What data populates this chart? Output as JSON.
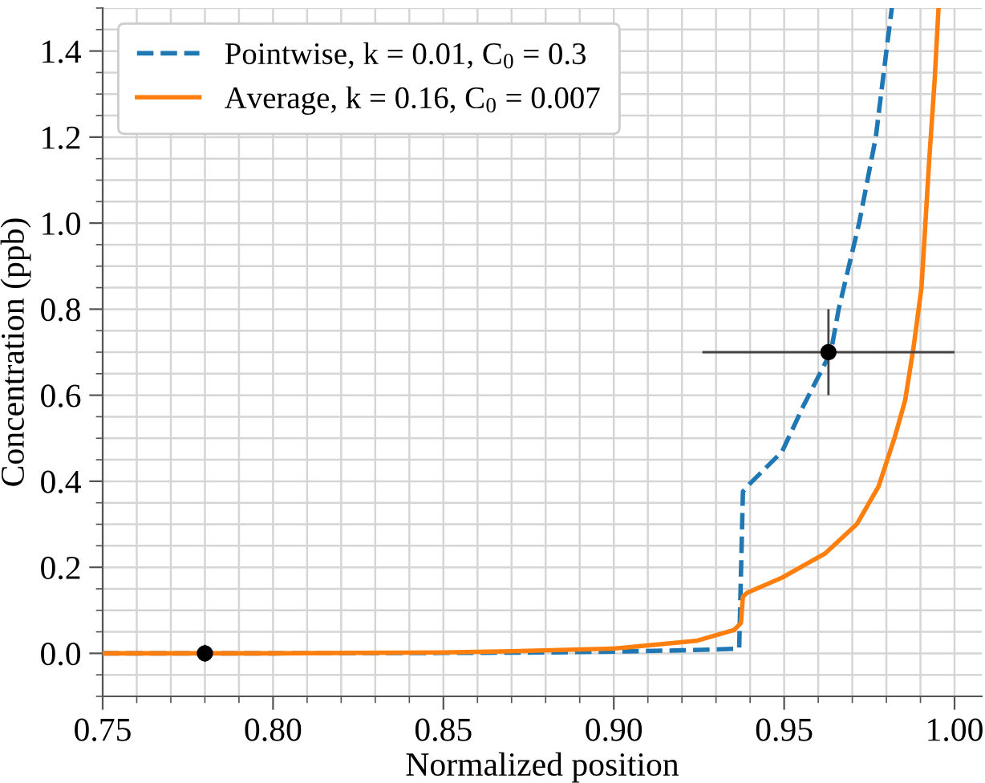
{
  "chart_data": {
    "type": "line",
    "xlabel": "Normalized position",
    "ylabel": "Concentration (ppb)",
    "xlim": [
      0.75,
      1.008
    ],
    "xticks": [
      0.75,
      {
        "value": 0.8,
        "label": "0.80"
      },
      0.85,
      {
        "value": 0.9,
        "label": "0.90"
      },
      0.95,
      {
        "value": 1.0,
        "label": "1.00"
      }
    ],
    "ylim": [
      -0.1,
      1.5
    ],
    "yticks": [
      {
        "value": 0,
        "label": "0.0"
      },
      0.2,
      0.4,
      0.6,
      0.8,
      {
        "value": 1,
        "label": "1.0"
      },
      1.2,
      1.4
    ],
    "grid": true,
    "legend": "top left",
    "series": [
      {
        "name": "Pointwise, k = 0.01, C$_{0}$ = 0.3",
        "color": "#1f77b4",
        "line_style": "dashed",
        "x": [
          0.75,
          0.8,
          0.85,
          0.88,
          0.9,
          0.92,
          0.93,
          0.9368,
          0.9379,
          0.9399,
          0.9494,
          0.9557,
          0.9637,
          0.966,
          0.972,
          0.9769,
          0.98,
          0.9816
        ],
        "values": [
          0.0,
          0.0,
          0.001,
          0.002,
          0.004,
          0.007,
          0.009,
          0.011,
          0.376,
          0.394,
          0.469,
          0.576,
          0.7,
          0.8,
          1.0,
          1.2,
          1.4,
          1.5
        ]
      },
      {
        "name": "Average, k = 0.16, C$_{0}$ = 0.007",
        "color": "#ff7f0e",
        "line_style": "solid",
        "x": [
          0.75,
          0.8,
          0.85,
          0.87,
          0.9,
          0.9242,
          0.9352,
          0.9373,
          0.9379,
          0.9392,
          0.9494,
          0.962,
          0.9714,
          0.9777,
          0.9824,
          0.9855,
          0.988,
          0.9903,
          0.9926,
          0.9942,
          0.9953
        ],
        "values": [
          0.0,
          0.0,
          0.002,
          0.005,
          0.011,
          0.029,
          0.054,
          0.07,
          0.132,
          0.141,
          0.176,
          0.232,
          0.301,
          0.388,
          0.501,
          0.588,
          0.713,
          0.85,
          1.15,
          1.337,
          1.5
        ]
      },
      {
        "type": "scatter",
        "color": "#000000",
        "marker": "circle",
        "x": [
          0.78,
          0.963
        ],
        "values": [
          0.0,
          0.7
        ],
        "errors": [
          0.02,
          0.1
        ],
        "xerrors": [
          null,
          0.037
        ]
      }
    ]
  }
}
